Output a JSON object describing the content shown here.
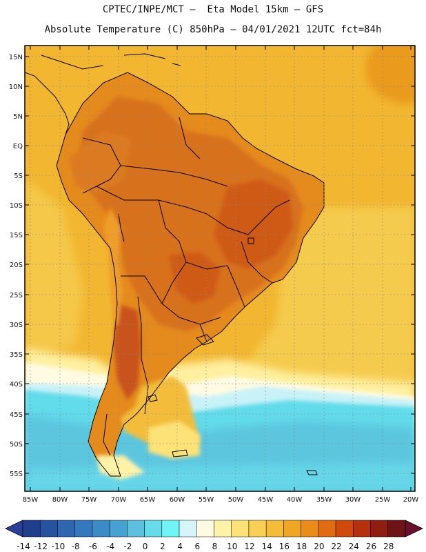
{
  "header": {
    "line1": "CPTEC/INPE/MCT –  Eta Model 15km – GFS",
    "line2": "Absolute Temperature (C) 850hPa – 04/01/2021 12UTC fct=84h"
  },
  "axes": {
    "lat_labels": [
      "15N",
      "10N",
      "5N",
      "EQ",
      "5S",
      "10S",
      "15S",
      "20S",
      "25S",
      "30S",
      "35S",
      "40S",
      "45S",
      "50S",
      "55S"
    ],
    "lon_labels": [
      "85W",
      "80W",
      "75W",
      "70W",
      "65W",
      "60W",
      "55W",
      "50W",
      "45W",
      "40W",
      "35W",
      "30W",
      "25W",
      "20W"
    ]
  },
  "colorbar": {
    "labels": [
      "-14",
      "-12",
      "-10",
      "-8",
      "-6",
      "-4",
      "-2",
      "0",
      "2",
      "4",
      "6",
      "8",
      "10",
      "12",
      "14",
      "16",
      "18",
      "20",
      "22",
      "24",
      "26",
      "28"
    ],
    "colors": [
      "#1f3f8c",
      "#2653a0",
      "#2e66b0",
      "#3479bd",
      "#3b8cc6",
      "#47a2d2",
      "#5cc0de",
      "#66dbea",
      "#6ff5f5",
      "#d6f5fb",
      "#fffbe3",
      "#fff3a8",
      "#fde277",
      "#f9cf56",
      "#f3bd3a",
      "#efa723",
      "#e98c1a",
      "#e06b10",
      "#cf4a0c",
      "#b5300c",
      "#8f1d12",
      "#6e1418"
    ],
    "low_arrow_color": "#2a3f96",
    "high_arrow_color": "#6a0f2e"
  },
  "colors": {
    "ocean_warm": "#f2b630",
    "ocean_mid": "#f4c74a",
    "land_hot": "#dc7a22",
    "land_very_hot": "#d0621a",
    "cold_ocean": "#5fd8e8",
    "cool_ocean": "#c8f2f8"
  }
}
